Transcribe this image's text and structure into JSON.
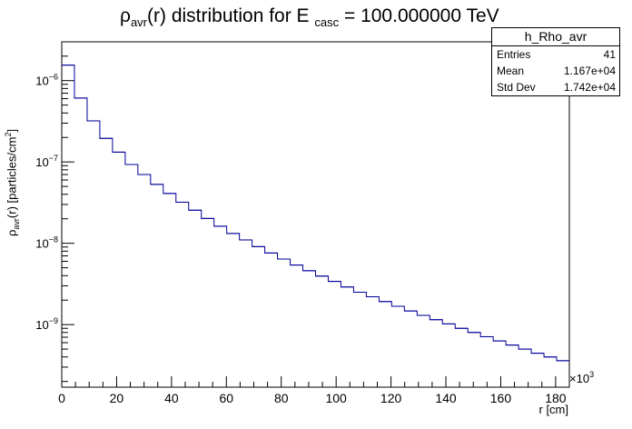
{
  "title": {
    "prefix": "ρ",
    "prefix_sub": "avr",
    "middle": "(r) distribution for E ",
    "e_sub": "casc",
    "suffix": " = 100.000000 TeV"
  },
  "stats": {
    "name": "h_Rho_avr",
    "entries_label": "Entries",
    "entries_value": "41",
    "mean_label": "Mean",
    "mean_value": "1.167e+04",
    "stddev_label": "Std Dev",
    "stddev_value": "1.742e+04"
  },
  "axis": {
    "ylabel_rho": "ρ",
    "ylabel_sub": "avr",
    "ylabel_mid": "(r) [particles/cm",
    "ylabel_sup": "2",
    "ylabel_end": "]",
    "xlabel": "r [cm]",
    "x_multiplier": "×10",
    "x_multiplier_exp": "3"
  },
  "colors": {
    "line": "#000099",
    "frame": "#000000"
  },
  "chart_data": {
    "type": "histogram",
    "y_scale": "log",
    "x_unit_multiplier": 1000,
    "xlim": [
      0,
      185
    ],
    "ylim": [
      1.7e-10,
      3e-06
    ],
    "bin_width": 4.625,
    "x_ticks": [
      0,
      20,
      40,
      60,
      80,
      100,
      120,
      140,
      160,
      180
    ],
    "x_tick_labels": [
      "0",
      "20",
      "40",
      "60",
      "80",
      "100",
      "120",
      "140",
      "160",
      "180"
    ],
    "y_ticks": [
      {
        "base": "10",
        "exp": "−9",
        "value": 1e-09
      },
      {
        "base": "10",
        "exp": "−8",
        "value": 1e-08
      },
      {
        "base": "10",
        "exp": "−7",
        "value": 1e-07
      },
      {
        "base": "10",
        "exp": "−6",
        "value": 1e-06
      }
    ],
    "values": [
      1.55e-06,
      6.1e-07,
      3.2e-07,
      1.95e-07,
      1.32e-07,
      9.3e-08,
      7e-08,
      5.3e-08,
      4.1e-08,
      3.2e-08,
      2.55e-08,
      2.02e-08,
      1.62e-08,
      1.32e-08,
      1.1e-08,
      9.1e-09,
      7.6e-09,
      6.4e-09,
      5.4e-09,
      4.6e-09,
      3.95e-09,
      3.4e-09,
      2.9e-09,
      2.5e-09,
      2.2e-09,
      1.92e-09,
      1.68e-09,
      1.47e-09,
      1.3e-09,
      1.15e-09,
      1.02e-09,
      9e-10,
      8e-10,
      7.1e-10,
      6.3e-10,
      5.6e-10,
      5e-10,
      4.45e-10,
      4e-10,
      3.6e-10
    ],
    "legend_placement": "top-right"
  }
}
